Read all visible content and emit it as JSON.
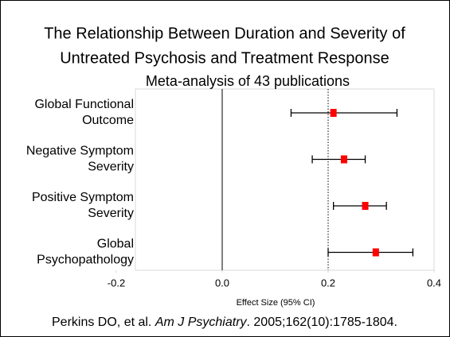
{
  "chart_data": {
    "type": "forest",
    "title": [
      "The Relationship Between Duration and Severity of",
      "Untreated Psychosis and Treatment Response"
    ],
    "subtitle": "Meta-analysis of 43 publications",
    "categories": [
      [
        "Global Functional",
        "Outcome"
      ],
      [
        "Negative Symptom",
        "Severity"
      ],
      [
        "Positive Symptom",
        "Severity"
      ],
      [
        "Global",
        "Psychopathology"
      ]
    ],
    "values": [
      0.21,
      0.23,
      0.27,
      0.29
    ],
    "lower": [
      0.13,
      0.17,
      0.21,
      0.2
    ],
    "upper": [
      0.33,
      0.27,
      0.31,
      0.36
    ],
    "color": "#ff0000",
    "xlim": [
      -0.2,
      0.4
    ],
    "xticks": [
      -0.2,
      {
        "value": 0,
        "label": "0.0"
      },
      0.2,
      0.4
    ],
    "zero_line": 0,
    "reference_line": 0.2,
    "xlabel": "Effect Size (95% CI)",
    "citation": {
      "authors": "Perkins DO, et al. ",
      "journal": "Am J Psychiatry",
      "details": ". 2005;162(10):1785-1804."
    }
  }
}
